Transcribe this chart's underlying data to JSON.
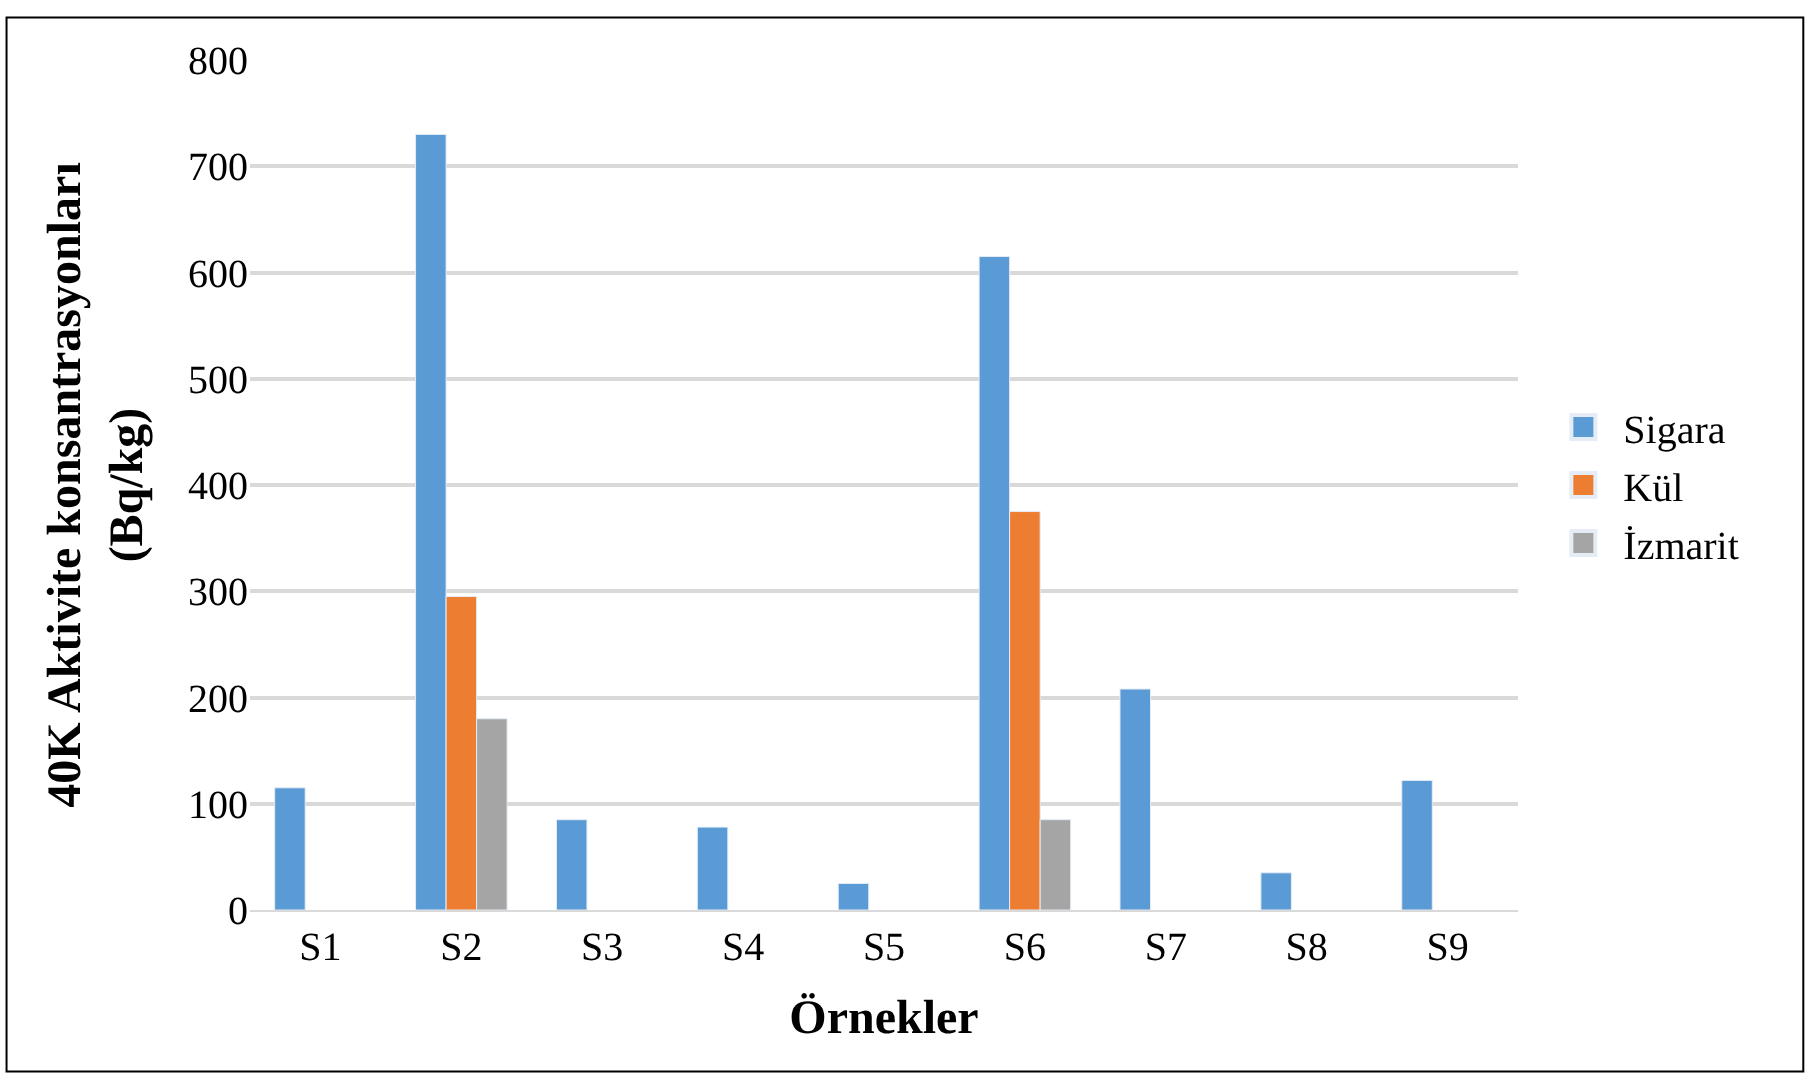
{
  "chart_data": {
    "type": "bar",
    "xlabel": "Örnekler",
    "ylabel": "40K Aktivite konsantrasyonları\n(Bq/kg)",
    "categories": [
      "S1",
      "S2",
      "S3",
      "S4",
      "S5",
      "S6",
      "S7",
      "S8",
      "S9"
    ],
    "series": [
      {
        "name": "Sigara",
        "color": "#5b9bd5",
        "values": [
          115,
          730,
          85,
          78,
          25,
          615,
          208,
          35,
          122
        ]
      },
      {
        "name": "Kül",
        "color": "#ed7d31",
        "values": [
          null,
          295,
          null,
          null,
          null,
          375,
          null,
          null,
          null
        ]
      },
      {
        "name": "İzmarit",
        "color": "#a5a5a5",
        "values": [
          null,
          180,
          null,
          null,
          null,
          85,
          null,
          null,
          null
        ]
      }
    ],
    "ylim": [
      0,
      800
    ],
    "yticks": [
      0,
      100,
      200,
      300,
      400,
      500,
      600,
      700,
      800
    ],
    "grid": "y",
    "legend": "right"
  }
}
